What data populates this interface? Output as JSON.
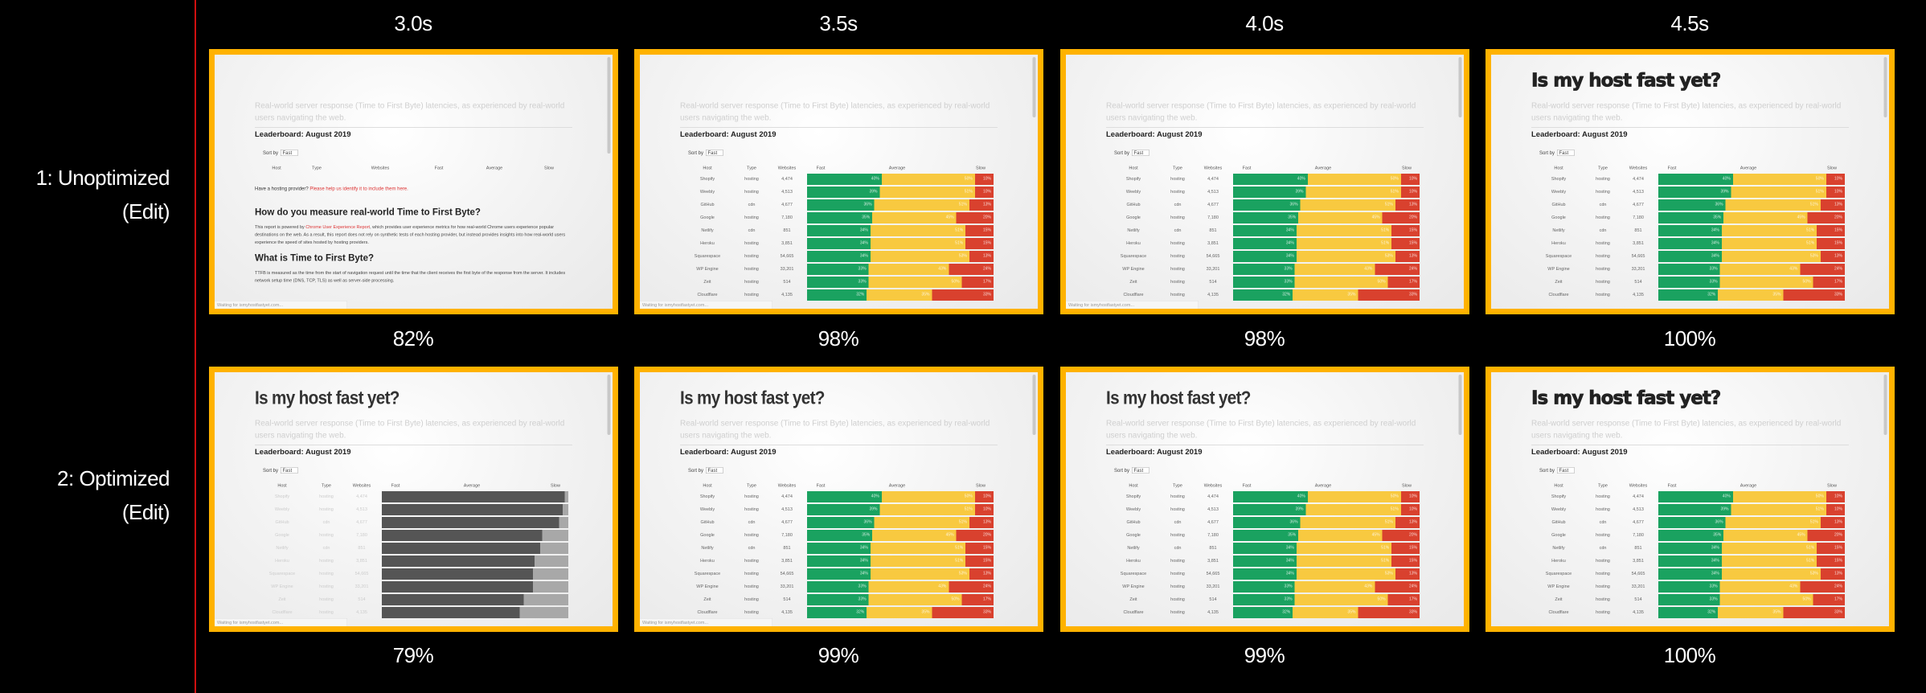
{
  "columns": [
    {
      "time": "3.0s"
    },
    {
      "time": "3.5s"
    },
    {
      "time": "4.0s"
    },
    {
      "time": "4.5s"
    }
  ],
  "rows": [
    {
      "label": "1: Unoptimized",
      "edit": "(Edit)",
      "frames": [
        {
          "progress": "82%",
          "title": "none",
          "table": "empty",
          "status_bar": true
        },
        {
          "progress": "98%",
          "title": "none",
          "table": "color",
          "status_bar": true
        },
        {
          "progress": "98%",
          "title": "none",
          "table": "color",
          "status_bar": true
        },
        {
          "progress": "100%",
          "title": "webfont",
          "table": "color",
          "status_bar": false
        }
      ]
    },
    {
      "label": "2: Optimized",
      "edit": "(Edit)",
      "frames": [
        {
          "progress": "79%",
          "title": "fallback",
          "table": "gray",
          "status_bar": true
        },
        {
          "progress": "99%",
          "title": "fallback",
          "table": "color",
          "status_bar": true
        },
        {
          "progress": "99%",
          "title": "fallback",
          "table": "color",
          "status_bar": false
        },
        {
          "progress": "100%",
          "title": "webfont",
          "table": "color",
          "status_bar": false
        }
      ]
    }
  ],
  "page": {
    "title": "Is my host fast yet?",
    "subtitle": "Real-world server response (Time to First Byte) latencies, as experienced by real-world users navigating the web.",
    "leaderboard": "Leaderboard: August 2019",
    "sort_label": "Sort by",
    "sort_value": "Fast",
    "table_headers": [
      "Host",
      "Type",
      "Websites",
      "Fast",
      "Average",
      "Slow"
    ],
    "table_rows": [
      {
        "host": "Shopify",
        "type": "hosting",
        "websites": "4,474",
        "fast": 40,
        "average": 50,
        "slow": 10
      },
      {
        "host": "Weebly",
        "type": "hosting",
        "websites": "4,513",
        "fast": 39,
        "average": 51,
        "slow": 10
      },
      {
        "host": "GitHub",
        "type": "cdn",
        "websites": "4,677",
        "fast": 36,
        "average": 51,
        "slow": 13
      },
      {
        "host": "Google",
        "type": "hosting",
        "websites": "7,180",
        "fast": 35,
        "average": 45,
        "slow": 20
      },
      {
        "host": "Netlify",
        "type": "cdn",
        "websites": "851",
        "fast": 34,
        "average": 51,
        "slow": 15
      },
      {
        "host": "Heroku",
        "type": "hosting",
        "websites": "3,851",
        "fast": 34,
        "average": 51,
        "slow": 15
      },
      {
        "host": "Squarespace",
        "type": "hosting",
        "websites": "54,665",
        "fast": 34,
        "average": 53,
        "slow": 13
      },
      {
        "host": "WP Engine",
        "type": "hosting",
        "websites": "33,201",
        "fast": 33,
        "average": 43,
        "slow": 24
      },
      {
        "host": "Zeit",
        "type": "hosting",
        "websites": "514",
        "fast": 33,
        "average": 50,
        "slow": 17
      },
      {
        "host": "Cloudflare",
        "type": "hosting",
        "websites": "4,135",
        "fast": 32,
        "average": 35,
        "slow": 33
      }
    ],
    "gray_dark_fraction": [
      98,
      97,
      95,
      86,
      85,
      82,
      81,
      81,
      76,
      74
    ],
    "help_text": "Have a hosting provider?",
    "help_link": "Please help us identify it to include them here.",
    "heading_measure": "How do you measure real-world Time to First Byte?",
    "paragraph_measure_prefix": "This report is powered by ",
    "paragraph_measure_link": "Chrome User Experience Report",
    "paragraph_measure": ", which provides user experience metrics for how real-world Chrome users experience popular destinations on the web. As a result, this report does not rely on synthetic tests of each hosting provider, but instead provides insights into how real-world users experience the speed of sites hosted by hosting providers.",
    "heading_ttfb": "What is Time to First Byte?",
    "paragraph_ttfb": "TTFB is measured as the time from the start of navigation request until the time that the client receives the first byte of the response from the server. It includes network setup time (DNS, TCP, TLS) as well as server-side processing.",
    "status_text": "Waiting for ismyhostfastyet.com..."
  },
  "colors": {
    "frame_border": "#ffb200",
    "divider": "#d01010",
    "fast": "#1aa260",
    "average": "#f8c940",
    "slow": "#d9412e",
    "gray_dark": "#555555",
    "gray_light": "#a8a8a8"
  }
}
